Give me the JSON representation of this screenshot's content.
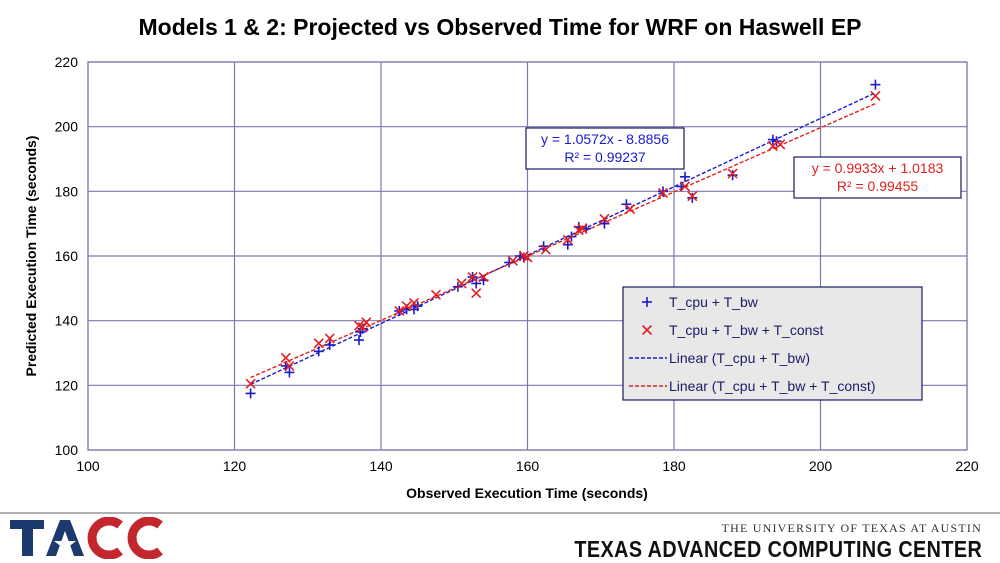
{
  "chart_data": {
    "type": "scatter",
    "title": "Models 1 & 2: Projected vs Observed Time for WRF on Haswell EP",
    "xlabel": "Observed Execution Time (seconds)",
    "ylabel": "Predicted Execution Time (seconds)",
    "xlim": [
      100,
      220
    ],
    "ylim": [
      100,
      220
    ],
    "xticks": [
      100,
      120,
      140,
      160,
      180,
      200,
      220
    ],
    "yticks": [
      100,
      120,
      140,
      160,
      180,
      200,
      220
    ],
    "grid": true,
    "legend_position": "lower-right",
    "series": [
      {
        "name": "T_cpu + T_bw",
        "marker": "plus",
        "color": "#1a1acc",
        "points": [
          [
            122.2,
            117.5
          ],
          [
            127.0,
            126.0
          ],
          [
            127.5,
            124.0
          ],
          [
            131.5,
            130.5
          ],
          [
            133.0,
            132.5
          ],
          [
            137.0,
            134.0
          ],
          [
            137.2,
            136.5
          ],
          [
            137.5,
            137.5
          ],
          [
            142.5,
            143.0
          ],
          [
            143.5,
            143.5
          ],
          [
            144.5,
            143.5
          ],
          [
            145.0,
            144.5
          ],
          [
            150.5,
            150.5
          ],
          [
            152.5,
            153.5
          ],
          [
            153.0,
            151.5
          ],
          [
            154.0,
            152.5
          ],
          [
            157.5,
            158.0
          ],
          [
            159.0,
            160.0
          ],
          [
            159.5,
            159.5
          ],
          [
            162.2,
            163.0
          ],
          [
            165.5,
            163.5
          ],
          [
            166.0,
            166.0
          ],
          [
            167.0,
            169.0
          ],
          [
            168.0,
            168.5
          ],
          [
            170.5,
            170.0
          ],
          [
            173.5,
            176.0
          ],
          [
            178.5,
            180.0
          ],
          [
            181.0,
            181.5
          ],
          [
            181.5,
            184.5
          ],
          [
            182.5,
            178.0
          ],
          [
            188.0,
            185.0
          ],
          [
            193.5,
            196.0
          ],
          [
            194.0,
            195.5
          ],
          [
            207.5,
            213.0
          ]
        ]
      },
      {
        "name": "T_cpu + T_bw + T_const",
        "marker": "x",
        "color": "#e02020",
        "points": [
          [
            122.2,
            120.5
          ],
          [
            127.0,
            128.5
          ],
          [
            127.5,
            126.0
          ],
          [
            131.5,
            133.0
          ],
          [
            133.0,
            134.5
          ],
          [
            137.0,
            138.5
          ],
          [
            137.5,
            138.0
          ],
          [
            138.0,
            139.5
          ],
          [
            142.5,
            143.0
          ],
          [
            143.5,
            144.5
          ],
          [
            144.5,
            145.5
          ],
          [
            147.5,
            148.0
          ],
          [
            151.0,
            151.5
          ],
          [
            152.5,
            153.5
          ],
          [
            153.0,
            148.5
          ],
          [
            154.0,
            153.5
          ],
          [
            158.0,
            158.5
          ],
          [
            159.5,
            160.0
          ],
          [
            160.0,
            159.5
          ],
          [
            162.5,
            162.0
          ],
          [
            165.5,
            165.0
          ],
          [
            167.0,
            168.0
          ],
          [
            167.5,
            168.5
          ],
          [
            170.5,
            171.5
          ],
          [
            174.0,
            174.5
          ],
          [
            178.5,
            179.5
          ],
          [
            181.5,
            181.5
          ],
          [
            182.5,
            178.5
          ],
          [
            188.0,
            185.5
          ],
          [
            193.5,
            194.0
          ],
          [
            194.5,
            194.5
          ],
          [
            207.5,
            209.5
          ]
        ]
      },
      {
        "name": "Linear (T_cpu + T_bw)",
        "type": "trendline",
        "slope": 1.0572,
        "intercept": -8.8856,
        "x_range": [
          122.2,
          207.5
        ],
        "color": "#1a1acc"
      },
      {
        "name": "Linear (T_cpu + T_bw + T_const)",
        "type": "trendline",
        "slope": 0.9933,
        "intercept": 1.0183,
        "x_range": [
          122.2,
          207.5
        ],
        "color": "#e02020"
      }
    ],
    "annotations": [
      {
        "line1": "y = 1.0572x - 8.8856",
        "line2": "R² = 0.99237",
        "color": "#1a1acc"
      },
      {
        "line1": "y = 0.9933x + 1.0183",
        "line2": "R² = 0.99455",
        "color": "#e02020"
      }
    ]
  },
  "footer": {
    "logo_text": "TACC",
    "university": "THE UNIVERSITY OF TEXAS AT AUSTIN",
    "center": "TEXAS ADVANCED COMPUTING CENTER"
  }
}
